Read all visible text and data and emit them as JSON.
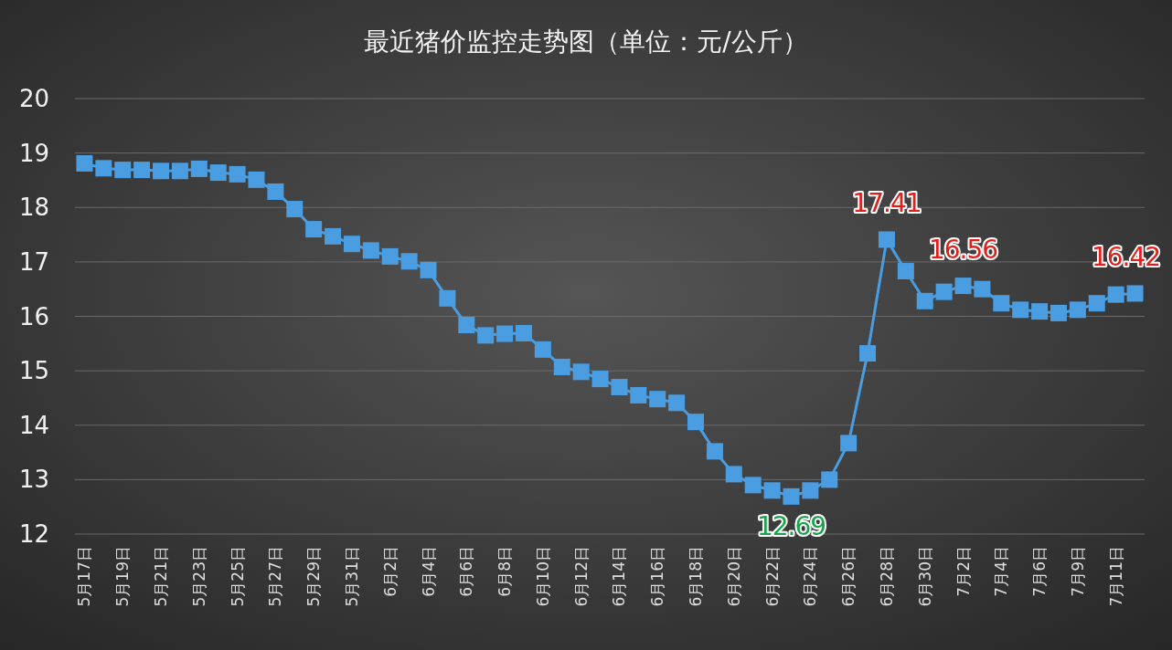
{
  "chart_data": {
    "type": "line",
    "title": "最近猪价监控走势图（单位：元/公斤）",
    "categories": [
      "5月17日",
      null,
      "5月19日",
      null,
      "5月21日",
      null,
      "5月23日",
      null,
      "5月25日",
      null,
      "5月27日",
      null,
      "5月29日",
      null,
      "5月31日",
      null,
      "6月2日",
      null,
      "6月4日",
      null,
      "6月6日",
      null,
      "6月8日",
      null,
      "6月10日",
      null,
      "6月12日",
      null,
      "6月14日",
      null,
      "6月16日",
      null,
      "6月18日",
      null,
      "6月20日",
      null,
      "6月22日",
      null,
      "6月24日",
      null,
      "6月26日",
      null,
      "6月28日",
      null,
      "6月30日",
      null,
      "7月2日",
      null,
      "7月4日",
      null,
      "7月6日",
      null,
      "7月9日",
      null,
      "7月11日",
      null
    ],
    "series": [
      {
        "color": "#4a9de0",
        "values": [
          18.81,
          18.72,
          18.69,
          18.69,
          18.67,
          18.67,
          18.71,
          18.64,
          18.61,
          18.51,
          18.29,
          17.97,
          17.6,
          17.47,
          17.33,
          17.21,
          17.1,
          17.01,
          16.85,
          16.33,
          15.84,
          15.65,
          15.68,
          15.69,
          15.39,
          15.07,
          14.98,
          14.85,
          14.7,
          14.55,
          14.48,
          14.41,
          14.06,
          13.52,
          13.1,
          12.9,
          12.8,
          12.69,
          12.8,
          13.0,
          13.67,
          15.32,
          17.41,
          16.83,
          16.28,
          16.45,
          16.56,
          16.5,
          16.24,
          16.12,
          16.09,
          16.06,
          16.12,
          16.24,
          16.4,
          16.42
        ],
        "value_labels": [
          null,
          null,
          null,
          null,
          null,
          null,
          null,
          null,
          null,
          null,
          null,
          null,
          null,
          null,
          null,
          null,
          null,
          null,
          null,
          null,
          null,
          null,
          null,
          null,
          null,
          null,
          null,
          null,
          null,
          null,
          null,
          null,
          null,
          null,
          null,
          null,
          null,
          "12.69",
          null,
          null,
          null,
          null,
          "17.41",
          null,
          null,
          null,
          "16.56",
          null,
          null,
          null,
          null,
          null,
          null,
          null,
          null,
          "16.42"
        ]
      }
    ],
    "ylim": [
      12,
      20
    ],
    "yticks": [
      12,
      13,
      14,
      15,
      16,
      17,
      18,
      19,
      20
    ],
    "grid": "y",
    "marker": "square",
    "line_style": "solid"
  }
}
